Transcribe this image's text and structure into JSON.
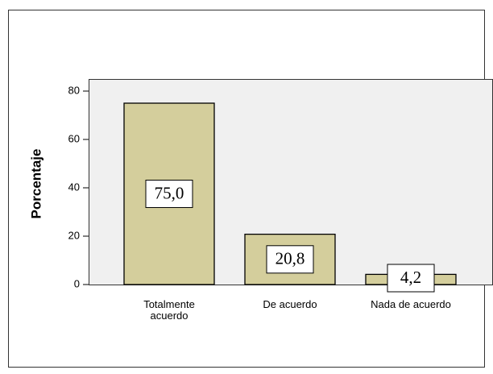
{
  "chart_data": {
    "type": "bar",
    "y_label": "Porcentaje",
    "categories": [
      "Totalmente acuerdo",
      "De acuerdo",
      "Nada de acuerdo"
    ],
    "values": [
      75.0,
      20.8,
      4.2
    ],
    "value_labels": [
      "75,0",
      "20,8",
      "4,2"
    ],
    "color": "#d4ce9c",
    "ylim": [
      0,
      85
    ],
    "yticks": [
      0,
      20,
      40,
      60,
      80
    ],
    "grid": false
  }
}
